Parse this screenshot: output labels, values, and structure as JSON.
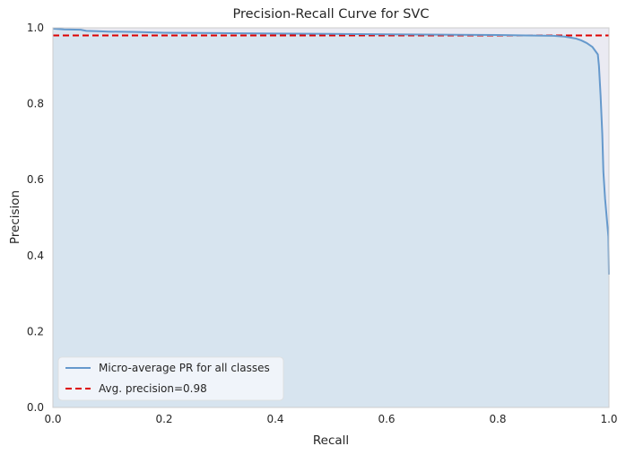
{
  "chart_data": {
    "type": "line",
    "title": "Precision-Recall Curve for SVC",
    "xlabel": "Recall",
    "ylabel": "Precision",
    "xlim": [
      0,
      1
    ],
    "ylim": [
      0,
      1
    ],
    "xticks": [
      "0.0",
      "0.2",
      "0.4",
      "0.6",
      "0.8",
      "1.0"
    ],
    "yticks": [
      "0.0",
      "0.2",
      "0.4",
      "0.6",
      "0.8",
      "1.0"
    ],
    "grid": false,
    "legend_position": "lower-left",
    "series": [
      {
        "name": "Micro-average PR for all classes",
        "style": "solid",
        "color": "#6699cc",
        "fill": "#d7e4ef",
        "x": [
          0.0,
          0.02,
          0.05,
          0.06,
          0.08,
          0.1,
          0.15,
          0.2,
          0.3,
          0.4,
          0.5,
          0.6,
          0.7,
          0.8,
          0.85,
          0.9,
          0.92,
          0.94,
          0.95,
          0.96,
          0.97,
          0.975,
          0.98,
          0.982,
          0.985,
          0.988,
          0.99,
          0.993,
          0.996,
          0.999,
          1.0
        ],
        "y": [
          0.998,
          0.996,
          0.995,
          0.992,
          0.991,
          0.99,
          0.989,
          0.987,
          0.986,
          0.985,
          0.984,
          0.983,
          0.982,
          0.981,
          0.98,
          0.979,
          0.977,
          0.972,
          0.967,
          0.96,
          0.95,
          0.94,
          0.93,
          0.9,
          0.82,
          0.72,
          0.62,
          0.55,
          0.5,
          0.45,
          0.35
        ]
      },
      {
        "name": "Avg. precision=0.98",
        "style": "dashed",
        "color": "#dd0000",
        "x": [
          0,
          1
        ],
        "y": [
          0.98,
          0.98
        ]
      }
    ]
  }
}
